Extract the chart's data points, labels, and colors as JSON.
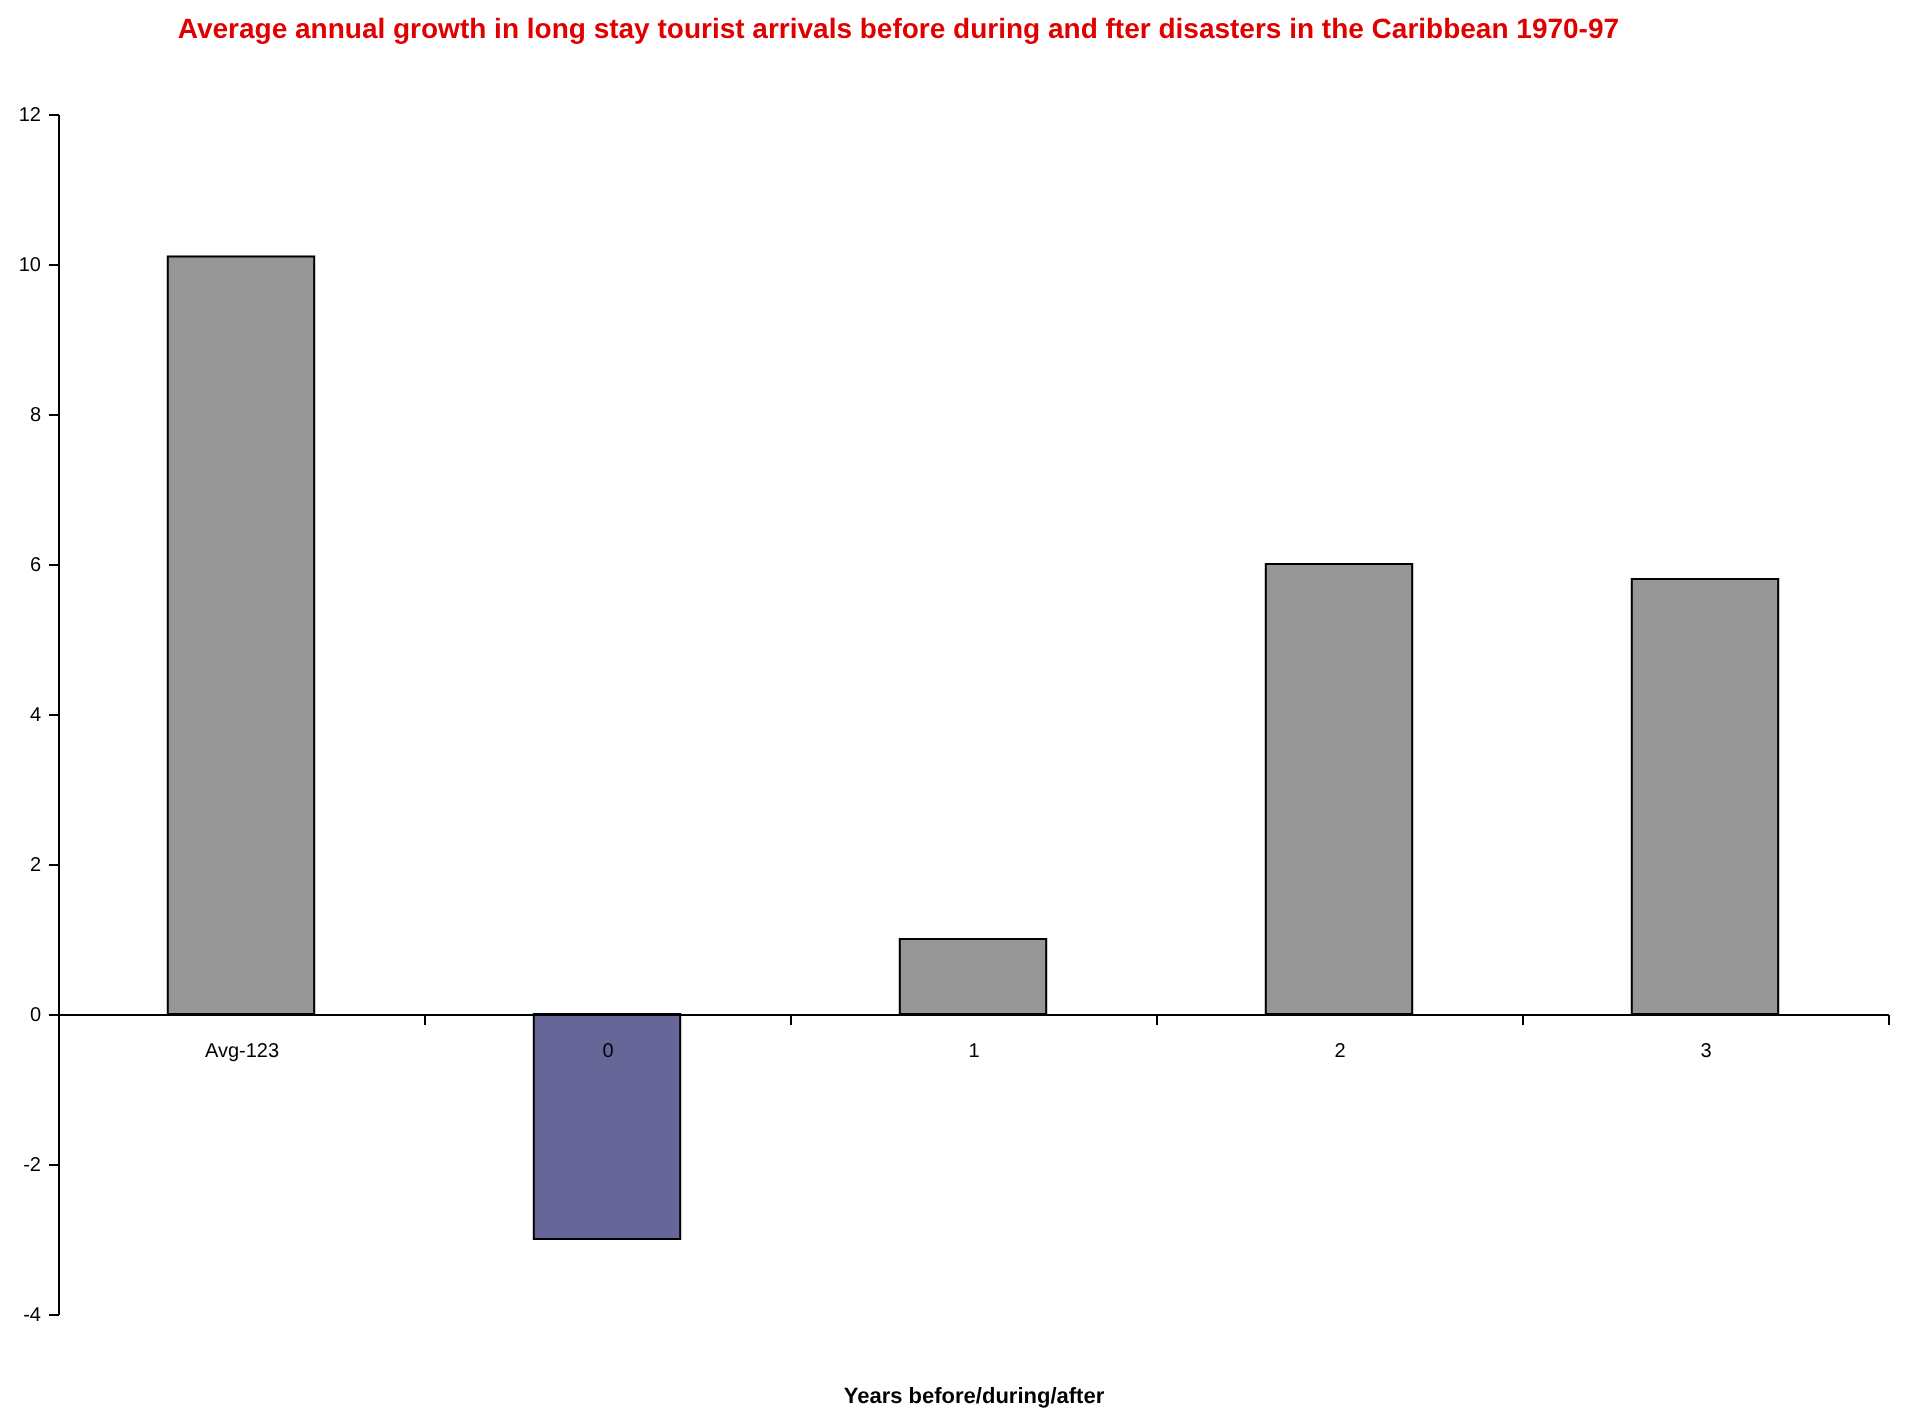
{
  "chart_data": {
    "type": "bar",
    "title": "Average annual growth in long stay tourist arrivals before during and fter disasters in the Caribbean 1970-97",
    "xlabel": "Years before/during/after",
    "categories": [
      "Avg-123",
      "0",
      "1",
      "2",
      "3"
    ],
    "values": [
      10.1,
      -3.0,
      1.0,
      6.0,
      5.8
    ],
    "colors": [
      "#969696",
      "#666699",
      "#969696",
      "#969696",
      "#969696"
    ],
    "ylim": [
      -4,
      12
    ],
    "yticks": [
      -4,
      -2,
      0,
      2,
      4,
      6,
      8,
      10,
      12
    ],
    "grid": false,
    "legend": false
  }
}
